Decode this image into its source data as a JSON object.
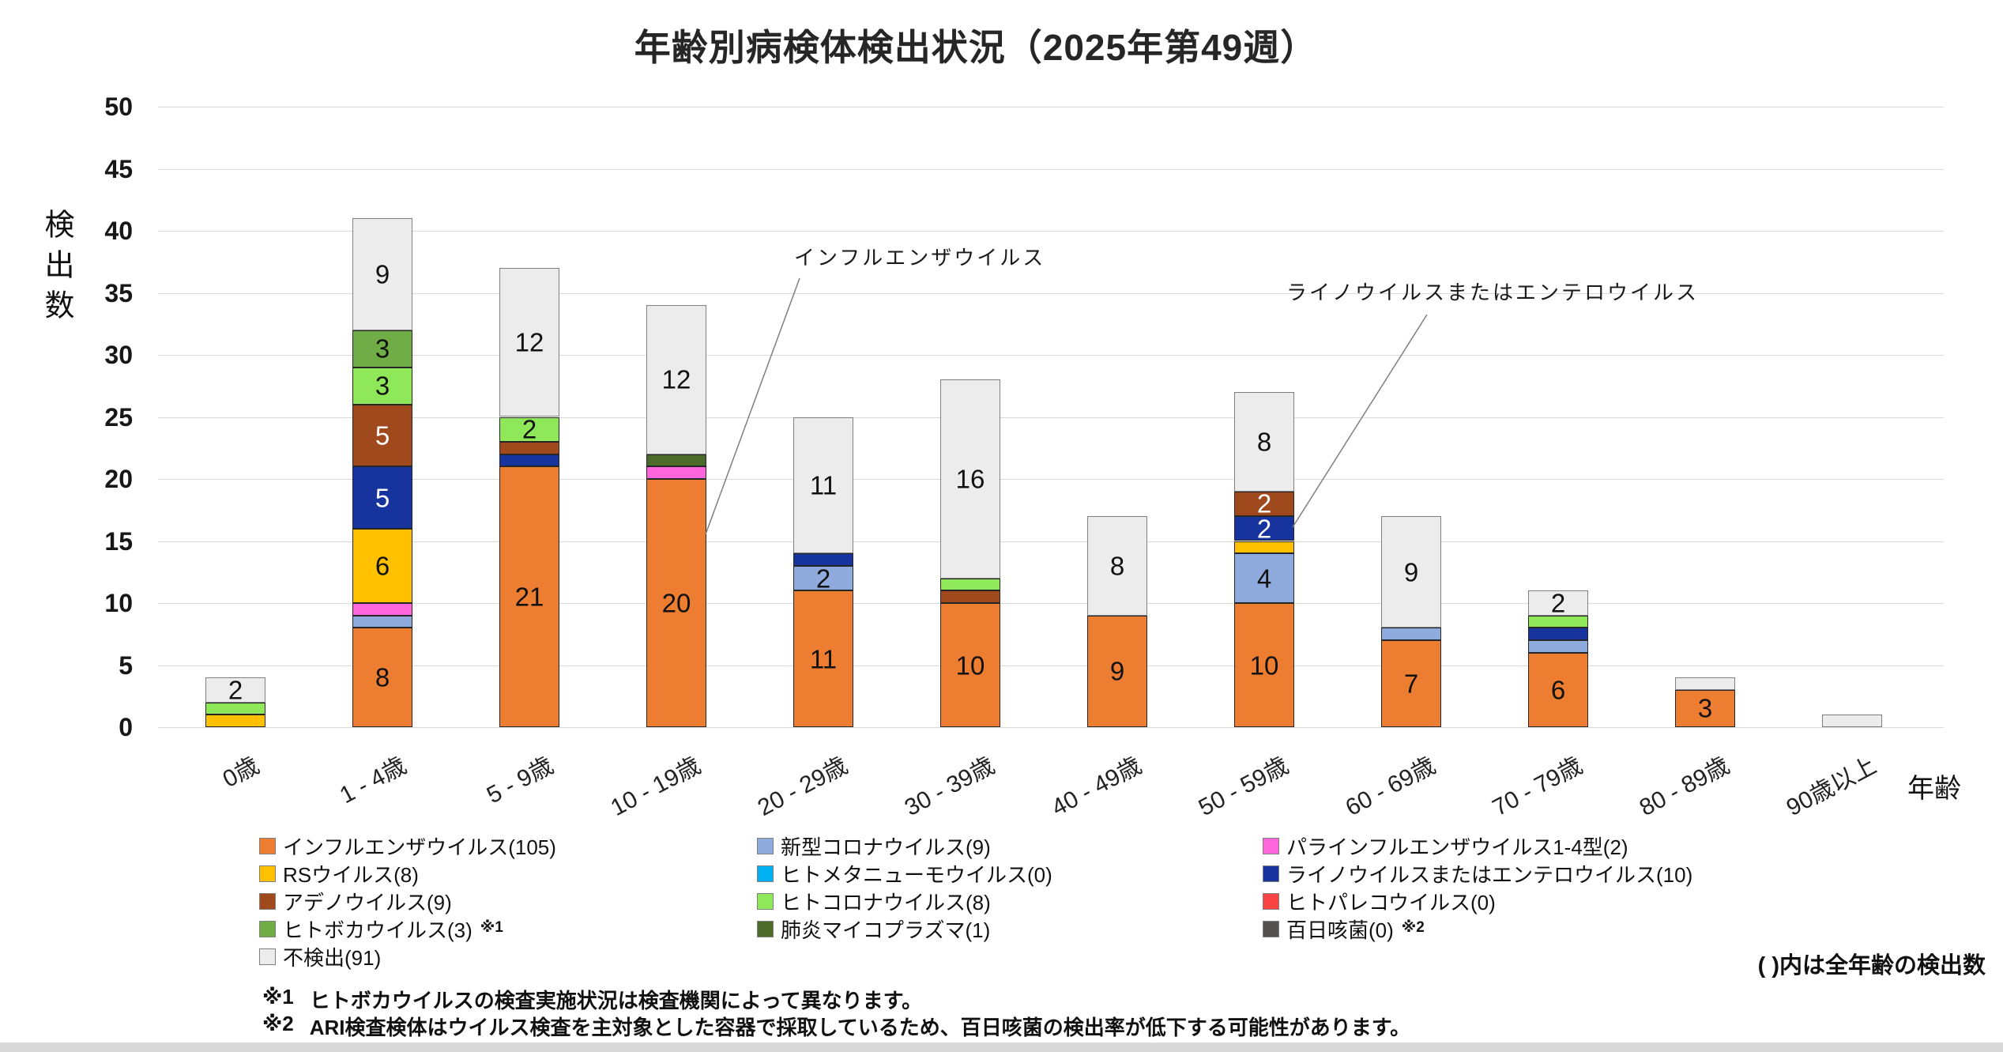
{
  "title": "年齢別病検体検出状況（2025年第49週）",
  "y_axis": {
    "title": "検出数"
  },
  "x_axis": {
    "title": "年齢"
  },
  "legend_note": "( )内は全年齢の検出数",
  "footnotes": [
    {
      "marker": "※1",
      "text": "ヒトボカウイルスの検査実施状況は検査機関によって異なります。"
    },
    {
      "marker": "※2",
      "text": "ARI検査検体はウイルス検査を主対象とした容器で採取しているため、百日咳菌の検出率が低下する可能性があります。"
    }
  ],
  "annotations": [
    {
      "text": "インフルエンザウイルス",
      "target_category": "10 - 19歳"
    },
    {
      "text": "ライノウイルスまたはエンテロウイルス",
      "target_category": "50 - 59歳"
    }
  ],
  "chart_data": {
    "type": "bar",
    "stacked": true,
    "title": "年齢別病検体検出状況（2025年第49週）",
    "xlabel": "年齢",
    "ylabel": "検出数",
    "ylim": [
      0,
      50
    ],
    "y_tick_step": 5,
    "y_ticks": [
      0,
      5,
      10,
      15,
      20,
      25,
      30,
      35,
      40,
      45,
      50
    ],
    "grid": true,
    "label_min_value": 2,
    "categories": [
      "0歳",
      "1 - 4歳",
      "5 - 9歳",
      "10 - 19歳",
      "20 - 29歳",
      "30 - 39歳",
      "40 - 49歳",
      "50 - 59歳",
      "60 - 69歳",
      "70 - 79歳",
      "80 - 89歳",
      "90歳以上"
    ],
    "series": [
      {
        "name": "インフルエンザウイルス",
        "legend_label": "インフルエンザウイルス(105)",
        "total": 105,
        "color": "#ED7D31",
        "border": "#262626",
        "label_color": "#111111",
        "values": [
          0,
          8,
          21,
          20,
          11,
          10,
          9,
          10,
          7,
          6,
          3,
          0
        ]
      },
      {
        "name": "新型コロナウイルス",
        "legend_label": "新型コロナウイルス(9)",
        "total": 9,
        "color": "#8FAADC",
        "border": "#262626",
        "label_color": "#111111",
        "values": [
          0,
          1,
          0,
          0,
          2,
          0,
          0,
          4,
          1,
          1,
          0,
          0
        ]
      },
      {
        "name": "パラインフルエンザウイルス1-4型",
        "legend_label": "パラインフルエンザウイルス1-4型(2)",
        "total": 2,
        "color": "#FF66DC",
        "border": "#262626",
        "label_color": "#111111",
        "values": [
          0,
          1,
          0,
          1,
          0,
          0,
          0,
          0,
          0,
          0,
          0,
          0
        ]
      },
      {
        "name": "RSウイルス",
        "legend_label": "RSウイルス(8)",
        "total": 8,
        "color": "#FFC000",
        "border": "#262626",
        "label_color": "#111111",
        "values": [
          1,
          6,
          0,
          0,
          0,
          0,
          0,
          1,
          0,
          0,
          0,
          0
        ]
      },
      {
        "name": "ヒトメタニューモウイルス",
        "legend_label": "ヒトメタニューモウイルス(0)",
        "total": 0,
        "color": "#00B0F0",
        "border": "#262626",
        "label_color": "#111111",
        "values": [
          0,
          0,
          0,
          0,
          0,
          0,
          0,
          0,
          0,
          0,
          0,
          0
        ]
      },
      {
        "name": "ライノウイルスまたはエンテロウイルス",
        "legend_label": "ライノウイルスまたはエンテロウイルス(10)",
        "total": 10,
        "color": "#17339E",
        "border": "#262626",
        "label_color": "#FFFFFF",
        "values": [
          0,
          5,
          1,
          0,
          1,
          0,
          0,
          2,
          0,
          1,
          0,
          0
        ]
      },
      {
        "name": "アデノウイルス",
        "legend_label": "アデノウイルス(9)",
        "total": 9,
        "color": "#A0491C",
        "border": "#262626",
        "label_color": "#FFFFFF",
        "values": [
          0,
          5,
          1,
          0,
          0,
          1,
          0,
          2,
          0,
          0,
          0,
          0
        ]
      },
      {
        "name": "ヒトコロナウイルス",
        "legend_label": "ヒトコロナウイルス(8)",
        "total": 8,
        "color": "#8FE85A",
        "border": "#262626",
        "label_color": "#111111",
        "values": [
          1,
          3,
          2,
          0,
          0,
          1,
          0,
          0,
          0,
          1,
          0,
          0
        ]
      },
      {
        "name": "ヒトパレコウイルス",
        "legend_label": "ヒトパレコウイルス(0)",
        "total": 0,
        "color": "#FA4343",
        "border": "#262626",
        "label_color": "#111111",
        "values": [
          0,
          0,
          0,
          0,
          0,
          0,
          0,
          0,
          0,
          0,
          0,
          0
        ]
      },
      {
        "name": "ヒトボカウイルス",
        "legend_label": "ヒトボカウイルス(3)",
        "legend_suffix": "※1",
        "total": 3,
        "color": "#70AD47",
        "border": "#262626",
        "label_color": "#111111",
        "values": [
          0,
          3,
          0,
          0,
          0,
          0,
          0,
          0,
          0,
          0,
          0,
          0
        ]
      },
      {
        "name": "肺炎マイコプラズマ",
        "legend_label": "肺炎マイコプラズマ(1)",
        "total": 1,
        "color": "#4C6B2B",
        "border": "#262626",
        "label_color": "#FFFFFF",
        "values": [
          0,
          0,
          0,
          1,
          0,
          0,
          0,
          0,
          0,
          0,
          0,
          0
        ]
      },
      {
        "name": "百日咳菌",
        "legend_label": "百日咳菌(0)",
        "legend_suffix": "※2",
        "total": 0,
        "color": "#545151",
        "border": "#262626",
        "label_color": "#FFFFFF",
        "values": [
          0,
          0,
          0,
          0,
          0,
          0,
          0,
          0,
          0,
          0,
          0,
          0
        ]
      },
      {
        "name": "不検出",
        "legend_label": "不検出(91)",
        "total": 91,
        "color": "#ECECEC",
        "border": "#808080",
        "label_color": "#111111",
        "values": [
          2,
          9,
          12,
          12,
          11,
          16,
          8,
          8,
          9,
          2,
          1,
          1
        ]
      }
    ],
    "legend_position": "bottom",
    "legend_columns": [
      [
        0,
        3,
        6,
        9,
        12
      ],
      [
        1,
        4,
        7,
        10
      ],
      [
        2,
        5,
        8,
        11
      ]
    ]
  }
}
